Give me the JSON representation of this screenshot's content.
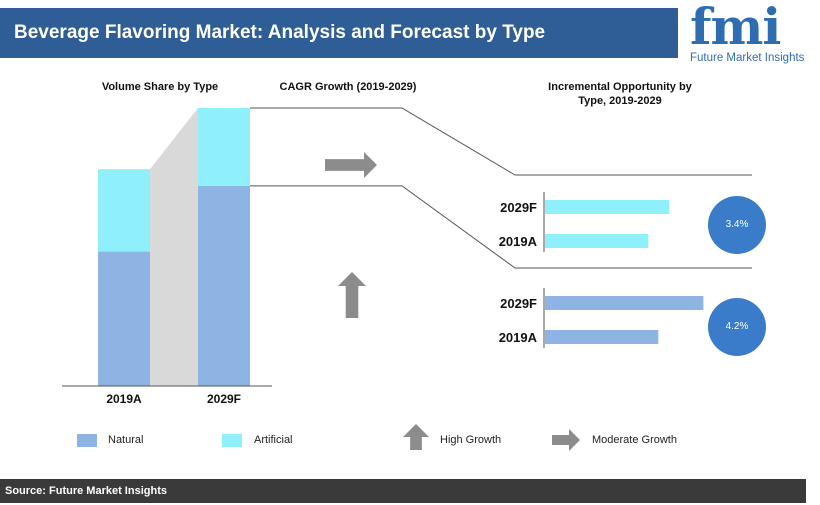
{
  "header": {
    "title": "Beverage Flavoring Market: Analysis and Forecast by Type"
  },
  "logo": {
    "letters": "fmi",
    "name": "Future Market Insights"
  },
  "sections": {
    "volume_title": "Volume Share by Type",
    "cagr_title": "CAGR Growth (2019-2029)",
    "incremental_title_line1": "Incremental Opportunity by",
    "incremental_title_line2": "Type, 2019-2029"
  },
  "colors": {
    "natural": "#8db4e2",
    "artificial": "#8ff0fc",
    "circle": "#3a7cc9",
    "arrow": "#8c8c8c",
    "header": "#2e5e95"
  },
  "chart_data": [
    {
      "type": "bar",
      "stacked": true,
      "title": "Volume Share by Type",
      "categories": [
        "2019A",
        "2029F"
      ],
      "series": [
        {
          "name": "Natural",
          "values": [
            62,
            72
          ]
        },
        {
          "name": "Artificial",
          "values": [
            38,
            28
          ]
        }
      ]
    },
    {
      "type": "bar",
      "orientation": "horizontal",
      "title": "Incremental Opportunity by Type, 2019-2029",
      "segment": "Artificial",
      "categories": [
        "2029F",
        "2019A"
      ],
      "values": [
        113,
        94
      ],
      "cagr": "3.4%",
      "growth": "Moderate Growth"
    },
    {
      "type": "bar",
      "orientation": "horizontal",
      "title": "Incremental Opportunity by Type, 2019-2029",
      "segment": "Natural",
      "categories": [
        "2029F",
        "2019A"
      ],
      "values": [
        144,
        103
      ],
      "cagr": "4.2%",
      "growth": "High Growth"
    }
  ],
  "legend": {
    "natural": "Natural",
    "artificial": "Artificial",
    "high_growth": "High Growth",
    "moderate_growth": "Moderate Growth"
  },
  "footer": {
    "source": "Source: Future Market Insights"
  }
}
